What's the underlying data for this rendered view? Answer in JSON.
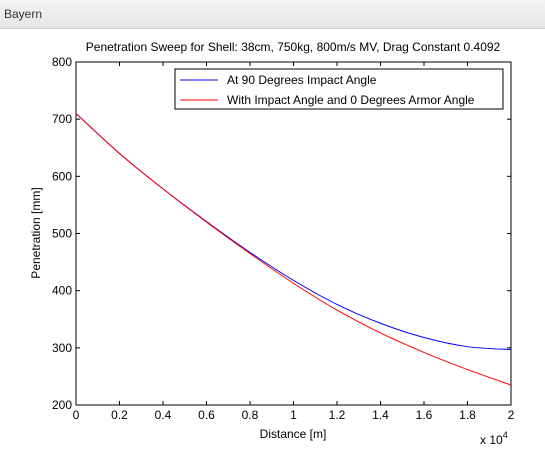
{
  "window": {
    "title": "Bayern"
  },
  "chart_data": {
    "type": "line",
    "title": "Penetration Sweep for Shell: 38cm, 750kg, 800m/s MV, Drag Constant 0.4092",
    "xlabel": "Distance [m]",
    "ylabel": "Penetration [mm]",
    "x_multiplier_label": "x 10",
    "x_multiplier_exponent": "4",
    "xlim": [
      0,
      20000
    ],
    "ylim": [
      200,
      800
    ],
    "xtick_values": [
      0,
      2000,
      4000,
      6000,
      8000,
      10000,
      12000,
      14000,
      16000,
      18000,
      20000
    ],
    "xtick_labels": [
      "0",
      "0.2",
      "0.4",
      "0.6",
      "0.8",
      "1",
      "1.2",
      "1.4",
      "1.6",
      "1.8",
      "2"
    ],
    "ytick_values": [
      200,
      300,
      400,
      500,
      600,
      700,
      800
    ],
    "ytick_labels": [
      "200",
      "300",
      "400",
      "500",
      "600",
      "700",
      "800"
    ],
    "grid": false,
    "legend_position": "top-right",
    "x": [
      0,
      2000,
      4000,
      6000,
      8000,
      10000,
      12000,
      14000,
      16000,
      18000,
      20000
    ],
    "series": [
      {
        "name": "At 90 Degrees Impact Angle",
        "color": "#0000ff",
        "values": [
          710,
          640,
          578,
          521,
          467,
          418,
          376,
          343,
          318,
          302,
          297
        ]
      },
      {
        "name": "With Impact Angle and 0 Degrees Armor Angle",
        "color": "#ff0000",
        "values": [
          710,
          640,
          578,
          520,
          465,
          413,
          366,
          326,
          292,
          262,
          235
        ]
      }
    ]
  }
}
